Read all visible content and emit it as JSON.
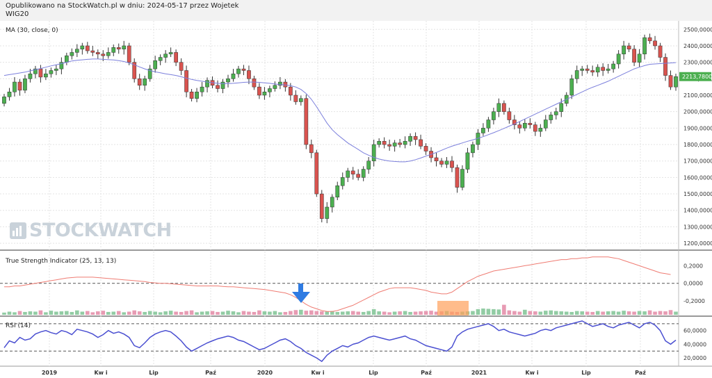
{
  "header": {
    "line1": "Opublikowano na StockWatch.pl w dniu: 2024-05-17 przez Wojetek",
    "line2": "WIG20"
  },
  "watermark": "STOCKWATCH",
  "colors": {
    "up": "#4caf50",
    "down": "#d9534f",
    "ma": "#7b7fdc",
    "tsi": "#ef7b72",
    "rsi": "#4a4fd1",
    "callout": "#ff9f5a",
    "arrow": "#2f7be2"
  },
  "chart_data": [
    {
      "type": "candlestick",
      "title": "MA (30, close, 0)",
      "x_ticks": [
        "2019",
        "Kw i",
        "Lip",
        "Paź",
        "2020",
        "Kw i",
        "Lip",
        "Paź",
        "2021",
        "Kw i",
        "Lip",
        "Paź"
      ],
      "y_ticks": [
        "2500,0000",
        "2400,0000",
        "2300,0000",
        "2200,0000",
        "2100,0000",
        "2000,0000",
        "1900,0000",
        "1800,0000",
        "1700,0000",
        "1600,0000",
        "1500,0000",
        "1400,0000",
        "1300,0000",
        "1200,0000"
      ],
      "ylim": [
        1175,
        2535
      ],
      "last_price_label": "2213,7800",
      "close": [
        2090,
        2120,
        2180,
        2130,
        2200,
        2230,
        2260,
        2210,
        2230,
        2250,
        2260,
        2300,
        2340,
        2360,
        2380,
        2400,
        2370,
        2360,
        2350,
        2340,
        2360,
        2390,
        2380,
        2400,
        2300,
        2200,
        2160,
        2200,
        2260,
        2310,
        2330,
        2350,
        2360,
        2300,
        2250,
        2120,
        2080,
        2120,
        2150,
        2190,
        2160,
        2140,
        2180,
        2200,
        2230,
        2260,
        2250,
        2200,
        2150,
        2100,
        2120,
        2140,
        2160,
        2180,
        2150,
        2100,
        2060,
        2080,
        1800,
        1750,
        1500,
        1350,
        1420,
        1480,
        1550,
        1600,
        1640,
        1620,
        1600,
        1650,
        1700,
        1800,
        1820,
        1800,
        1790,
        1810,
        1800,
        1820,
        1850,
        1830,
        1790,
        1760,
        1720,
        1700,
        1680,
        1700,
        1660,
        1540,
        1650,
        1750,
        1800,
        1870,
        1900,
        1950,
        2000,
        2050,
        2000,
        1950,
        1920,
        1900,
        1930,
        1920,
        1880,
        1900,
        1950,
        1980,
        2000,
        2050,
        2100,
        2200,
        2250,
        2260,
        2250,
        2240,
        2270,
        2250,
        2260,
        2290,
        2350,
        2400,
        2380,
        2300,
        2350,
        2450,
        2430,
        2400,
        2330,
        2220,
        2150,
        2213
      ],
      "ma": [
        2220,
        2225,
        2230,
        2235,
        2240,
        2248,
        2255,
        2262,
        2270,
        2278,
        2285,
        2292,
        2300,
        2308,
        2312,
        2315,
        2318,
        2320,
        2320,
        2318,
        2316,
        2314,
        2310,
        2305,
        2296,
        2285,
        2272,
        2260,
        2250,
        2242,
        2236,
        2230,
        2225,
        2220,
        2212,
        2204,
        2196,
        2190,
        2185,
        2180,
        2176,
        2172,
        2170,
        2170,
        2172,
        2175,
        2178,
        2180,
        2180,
        2178,
        2175,
        2172,
        2168,
        2165,
        2162,
        2158,
        2150,
        2135,
        2110,
        2075,
        2030,
        1980,
        1930,
        1890,
        1860,
        1835,
        1810,
        1790,
        1770,
        1750,
        1735,
        1722,
        1712,
        1705,
        1700,
        1697,
        1695,
        1695,
        1700,
        1708,
        1718,
        1730,
        1740,
        1752,
        1765,
        1778,
        1790,
        1800,
        1810,
        1820,
        1828,
        1838,
        1848,
        1860,
        1872,
        1885,
        1898,
        1912,
        1925,
        1940,
        1955,
        1970,
        1985,
        2000,
        2015,
        2030,
        2045,
        2060,
        2075,
        2090,
        2105,
        2120,
        2135,
        2148,
        2160,
        2172,
        2185,
        2200,
        2215,
        2230,
        2245,
        2260,
        2270,
        2280,
        2288,
        2290,
        2292,
        2294,
        2296,
        2298
      ]
    },
    {
      "type": "line",
      "title": "True Strength Indicator (25, 13, 13)",
      "y_ticks": [
        "0,2000",
        "0,0000",
        "-0,2000"
      ],
      "ylim": [
        -0.35,
        0.33
      ],
      "tsi": [
        -0.04,
        -0.04,
        -0.03,
        -0.03,
        -0.02,
        -0.01,
        0,
        0.01,
        0.02,
        0.03,
        0.04,
        0.05,
        0.06,
        0.065,
        0.07,
        0.07,
        0.07,
        0.07,
        0.065,
        0.06,
        0.055,
        0.05,
        0.045,
        0.04,
        0.035,
        0.03,
        0.025,
        0.02,
        0.01,
        0.005,
        0,
        0,
        -0.005,
        -0.01,
        -0.015,
        -0.02,
        -0.025,
        -0.03,
        -0.03,
        -0.03,
        -0.03,
        -0.03,
        -0.035,
        -0.04,
        -0.04,
        -0.045,
        -0.05,
        -0.055,
        -0.06,
        -0.065,
        -0.07,
        -0.08,
        -0.09,
        -0.1,
        -0.11,
        -0.13,
        -0.16,
        -0.2,
        -0.24,
        -0.27,
        -0.29,
        -0.31,
        -0.32,
        -0.32,
        -0.31,
        -0.29,
        -0.27,
        -0.25,
        -0.22,
        -0.19,
        -0.16,
        -0.13,
        -0.1,
        -0.08,
        -0.06,
        -0.05,
        -0.05,
        -0.05,
        -0.05,
        -0.06,
        -0.07,
        -0.08,
        -0.1,
        -0.11,
        -0.12,
        -0.12,
        -0.1,
        -0.06,
        -0.02,
        0.02,
        0.05,
        0.08,
        0.1,
        0.12,
        0.14,
        0.15,
        0.16,
        0.17,
        0.18,
        0.19,
        0.2,
        0.21,
        0.22,
        0.23,
        0.24,
        0.25,
        0.26,
        0.27,
        0.27,
        0.28,
        0.28,
        0.29,
        0.29,
        0.3,
        0.3,
        0.3,
        0.3,
        0.29,
        0.28,
        0.26,
        0.24,
        0.22,
        0.2,
        0.18,
        0.16,
        0.14,
        0.12,
        0.11,
        0.1
      ],
      "volume": [
        0.35,
        0.5,
        0.4,
        0.6,
        0.45,
        0.55,
        0.5,
        0.7,
        0.4,
        0.65,
        0.5,
        0.55,
        0.6,
        0.45,
        0.7,
        0.5,
        0.6,
        0.4,
        0.55,
        0.65,
        0.45,
        0.5,
        0.6,
        0.4,
        0.5,
        0.7,
        0.55,
        0.45,
        0.6,
        0.5,
        0.4,
        0.55,
        0.65,
        0.5,
        0.45,
        0.6,
        0.7,
        0.4,
        0.5,
        0.55,
        0.6,
        0.45,
        0.5,
        0.65,
        0.55,
        0.4,
        0.6,
        0.5,
        0.45,
        0.7,
        0.55,
        0.5,
        0.6,
        0.4,
        0.45,
        0.6,
        0.75,
        0.8,
        0.65,
        0.7,
        0.6,
        0.55,
        0.5,
        0.6,
        0.45,
        0.5,
        0.55,
        0.6,
        0.5,
        0.45,
        0.6,
        0.9,
        0.55,
        0.5,
        0.4,
        0.5,
        0.55,
        0.6,
        0.45,
        0.5,
        0.55,
        0.6,
        0.65,
        0.5,
        0.55,
        0.6,
        0.5,
        0.45,
        0.5,
        0.55,
        0.6,
        0.9,
        1.0,
        0.95,
        0.9,
        0.85,
        1.6,
        0.7,
        0.6,
        0.5,
        0.8,
        0.6,
        0.55,
        0.5,
        0.65,
        0.7,
        0.6,
        0.55,
        0.5,
        0.45,
        0.6,
        0.55,
        0.5,
        0.45,
        0.6,
        0.5,
        0.55,
        0.6,
        0.5,
        0.65,
        0.55,
        0.5,
        0.6,
        0.55,
        0.7,
        0.5,
        0.6,
        0.55,
        0.75,
        0.5
      ]
    },
    {
      "type": "line",
      "title": "RSI (14)",
      "y_ticks": [
        "60,0000",
        "40,0000",
        "20,0000"
      ],
      "ylim": [
        10,
        78
      ],
      "rsi": [
        35,
        45,
        42,
        50,
        46,
        48,
        55,
        58,
        60,
        57,
        55,
        60,
        58,
        54,
        62,
        60,
        58,
        55,
        50,
        54,
        60,
        56,
        58,
        55,
        50,
        38,
        35,
        42,
        50,
        55,
        58,
        60,
        58,
        52,
        45,
        36,
        30,
        34,
        38,
        42,
        45,
        48,
        50,
        52,
        50,
        46,
        44,
        40,
        36,
        32,
        34,
        38,
        42,
        46,
        48,
        44,
        38,
        34,
        28,
        24,
        20,
        15,
        24,
        30,
        34,
        38,
        36,
        40,
        42,
        46,
        50,
        52,
        50,
        48,
        46,
        48,
        50,
        52,
        48,
        46,
        42,
        38,
        36,
        34,
        32,
        30,
        36,
        52,
        58,
        62,
        64,
        66,
        68,
        70,
        66,
        60,
        62,
        58,
        56,
        54,
        52,
        54,
        56,
        60,
        62,
        60,
        64,
        66,
        68,
        70,
        72,
        74,
        70,
        66,
        68,
        70,
        66,
        64,
        68,
        70,
        72,
        68,
        64,
        70,
        72,
        68,
        60,
        45,
        40,
        46
      ],
      "hlines": [
        70,
        30
      ]
    }
  ]
}
